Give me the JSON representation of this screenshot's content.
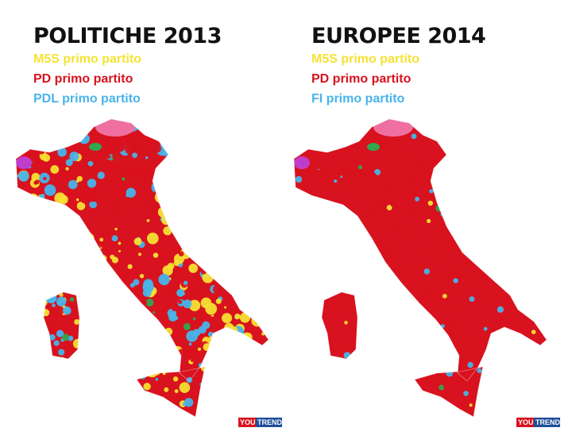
{
  "panels": [
    {
      "title": "POLITICHE 2013",
      "legend": [
        {
          "label": "M5S primo partito",
          "color": "#f7e233"
        },
        {
          "label": "PD primo partito",
          "color": "#d8121e"
        },
        {
          "label": "PDL primo partito",
          "color": "#48b4ea"
        }
      ],
      "logo": {
        "you": "YOU",
        "trend": "TREND"
      }
    },
    {
      "title": "EUROPEE 2014",
      "legend": [
        {
          "label": "M5S primo partito",
          "color": "#f7e233"
        },
        {
          "label": "PD primo partito",
          "color": "#d8121e"
        },
        {
          "label": "FI primo partito",
          "color": "#48b4ea"
        }
      ],
      "logo": {
        "you": "YOU",
        "trend": "TREND"
      }
    }
  ]
}
